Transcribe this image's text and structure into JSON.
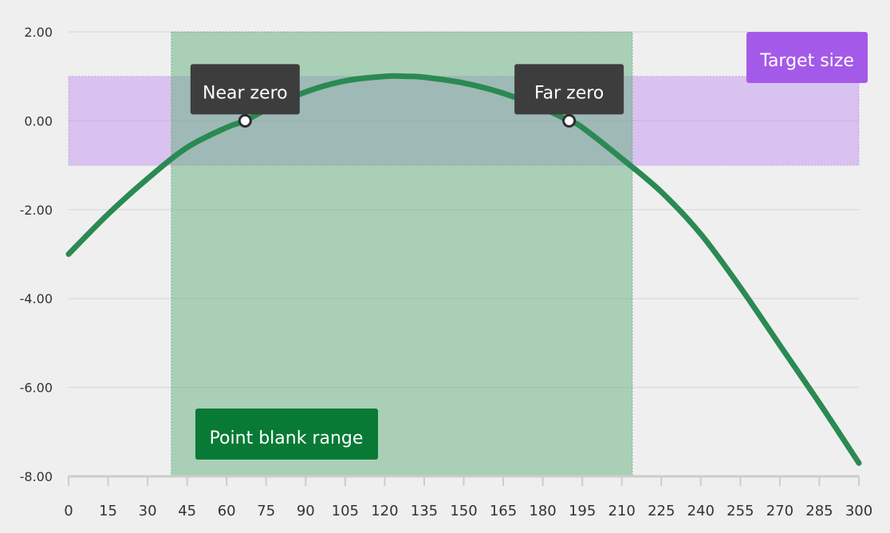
{
  "chart_data": {
    "type": "line",
    "title": "",
    "xlabel": "",
    "ylabel": "",
    "xlim": [
      0,
      300
    ],
    "ylim": [
      -8,
      2
    ],
    "x_ticks": [
      0,
      15,
      30,
      45,
      60,
      75,
      90,
      105,
      120,
      135,
      150,
      165,
      180,
      195,
      210,
      225,
      240,
      255,
      270,
      285,
      300
    ],
    "y_ticks": [
      "2.00",
      "0.00",
      "-2.00",
      "-4.00",
      "-6.00",
      "-8.00"
    ],
    "y_tick_values": [
      2,
      0,
      -2,
      -4,
      -6,
      -8
    ],
    "grid": "horizontal",
    "series": [
      {
        "x": [
          0,
          15,
          30,
          45,
          60,
          67,
          75,
          90,
          105,
          120,
          129,
          135,
          150,
          165,
          180,
          190,
          195,
          210,
          225,
          240,
          255,
          270,
          285,
          300
        ],
        "y": [
          -3.0,
          -2.1,
          -1.3,
          -0.6,
          -0.15,
          0.0,
          0.25,
          0.65,
          0.9,
          1.0,
          1.0,
          0.98,
          0.85,
          0.62,
          0.28,
          0.0,
          -0.15,
          -0.85,
          -1.6,
          -2.55,
          -3.75,
          -5.05,
          -6.35,
          -7.7
        ],
        "color": "#2a8a52"
      }
    ],
    "markers": [
      {
        "label": "Near zero",
        "x": 67,
        "y": 0
      },
      {
        "label": "Far zero",
        "x": 190,
        "y": 0
      }
    ],
    "bands": {
      "target_size": {
        "label": "Target size",
        "y_range": [
          -1,
          1
        ],
        "color": "#a45ae8",
        "fill": "rgba(190,140,240,0.45)"
      },
      "point_blank_range": {
        "label": "Point blank range",
        "x_range": [
          39,
          214
        ],
        "color": "#087a35",
        "fill": "rgba(100,175,125,0.5)"
      }
    },
    "colors": {
      "annotation_box": "#3d3d3d",
      "gridline": "#d6d6d6",
      "axis": "#cccccc"
    }
  }
}
